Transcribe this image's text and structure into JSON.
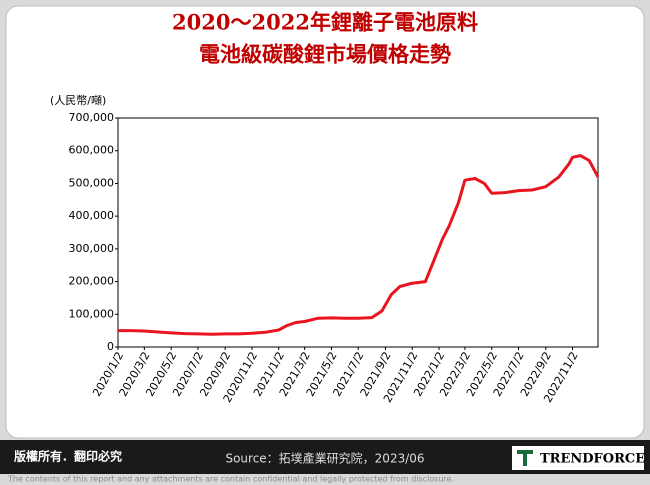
{
  "chart_data": {
    "type": "line",
    "title": [
      "2020～2022年鋰離子電池原料",
      "電池級碳酸鋰市場價格走勢"
    ],
    "y_unit_label": "(人民幣/噸)",
    "x": [
      "2020/1/2",
      "2020/2/2",
      "2020/3/2",
      "2020/4/2",
      "2020/5/2",
      "2020/6/2",
      "2020/7/2",
      "2020/8/2",
      "2020/9/2",
      "2020/10/2",
      "2020/11/2",
      "2020/12/2",
      "2021/1/2",
      "2021/1/20",
      "2021/2/10",
      "2021/3/2",
      "2021/4/2",
      "2021/5/2",
      "2021/6/2",
      "2021/7/2",
      "2021/8/2",
      "2021/8/25",
      "2021/9/15",
      "2021/10/5",
      "2021/11/2",
      "2021/12/2",
      "2021/12/20",
      "2022/1/10",
      "2022/1/25",
      "2022/2/15",
      "2022/3/2",
      "2022/3/25",
      "2022/4/15",
      "2022/5/2",
      "2022/6/2",
      "2022/7/2",
      "2022/8/2",
      "2022/9/2",
      "2022/10/2",
      "2022/10/25",
      "2022/11/2",
      "2022/11/20",
      "2022/12/10",
      "2022/12/30"
    ],
    "series": [
      {
        "name": "電池級碳酸鋰",
        "color": "#e8141e",
        "values": [
          50000,
          50000,
          49000,
          46000,
          43000,
          41000,
          40000,
          39000,
          40000,
          40000,
          42000,
          45000,
          52000,
          65000,
          75000,
          78000,
          88000,
          89000,
          88000,
          88000,
          90000,
          110000,
          160000,
          185000,
          195000,
          200000,
          260000,
          330000,
          370000,
          440000,
          510000,
          515000,
          500000,
          470000,
          472000,
          478000,
          480000,
          490000,
          520000,
          560000,
          580000,
          585000,
          570000,
          520000
        ]
      }
    ],
    "xlim": [
      "2020/1/2",
      "2022/12/30"
    ],
    "xticks": [
      "2020/1/2",
      "2020/3/2",
      "2020/5/2",
      "2020/7/2",
      "2020/9/2",
      "2020/11/2",
      "2021/1/2",
      "2021/3/2",
      "2021/5/2",
      "2021/7/2",
      "2021/9/2",
      "2021/11/2",
      "2022/1/2",
      "2022/3/2",
      "2022/5/2",
      "2022/7/2",
      "2022/9/2",
      "2022/11/2"
    ],
    "ylim": [
      0,
      700000
    ],
    "yticks": [
      0,
      {
        "value": 100000,
        "label": "100,000"
      },
      {
        "value": 200000,
        "label": "200,000"
      },
      {
        "value": 300000,
        "label": "300,000"
      },
      {
        "value": 400000,
        "label": "400,000"
      },
      {
        "value": 500000,
        "label": "500,000"
      },
      {
        "value": 600000,
        "label": "600,000"
      },
      {
        "value": 700000,
        "label": "700,000"
      }
    ],
    "grid": false
  },
  "footer": {
    "copyright": "版權所有．翻印必究",
    "source": "Source：拓墣產業研究院，2023/06",
    "logo": "TRENDFORCE",
    "disclaimer": "The contents of this report and any attachments are contain confidential and legally protected from disclosure."
  }
}
